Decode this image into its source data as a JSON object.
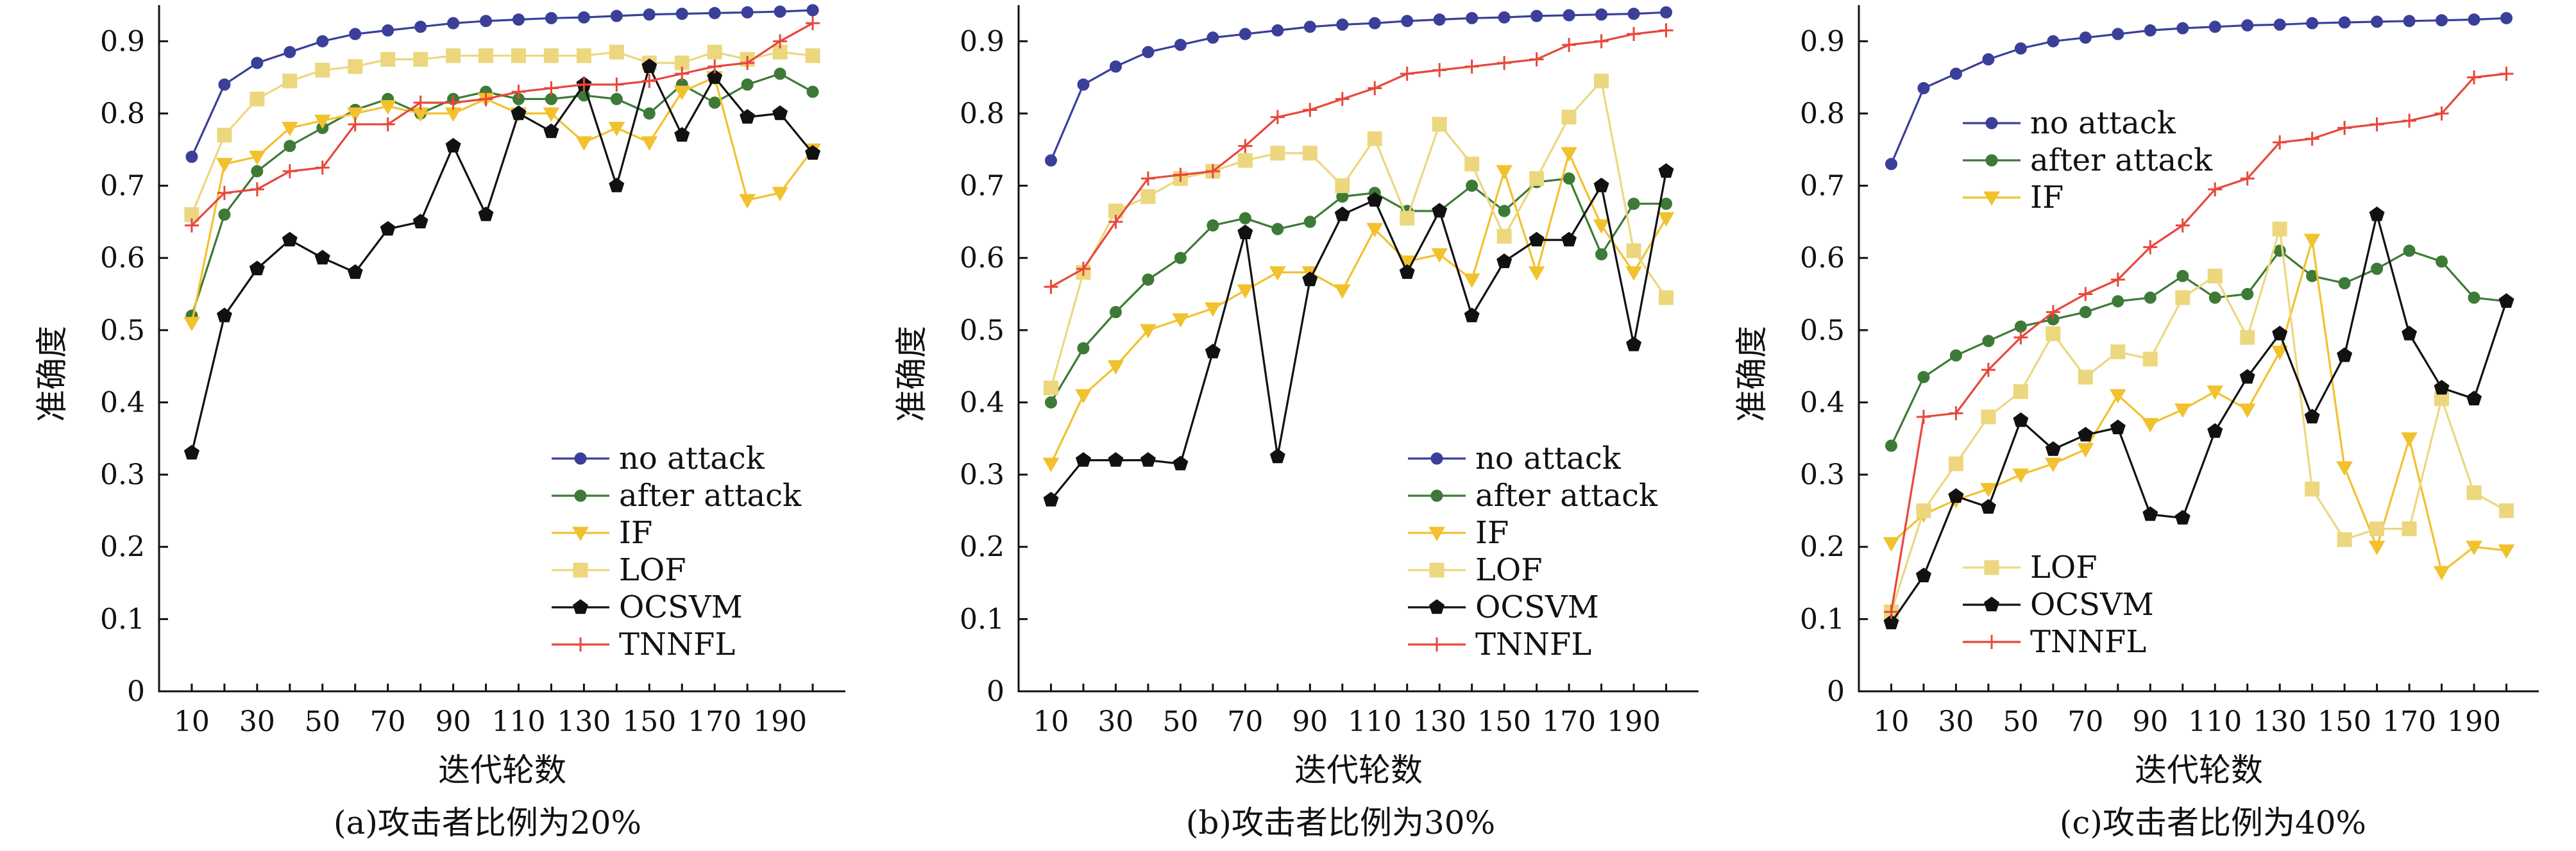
{
  "colors": {
    "no attack": "#3a3f9a",
    "after attack": "#3d7a37",
    "IF": "#f2c12e",
    "LOF": "#ecd77e",
    "OCSVM": "#111111",
    "TNNFL": "#e8473b"
  },
  "markers": {
    "no attack": "circle",
    "after attack": "circle",
    "IF": "triangle-down",
    "LOF": "square",
    "OCSVM": "pentagon",
    "TNNFL": "plus"
  },
  "chart_data": [
    {
      "type": "line",
      "caption": "(a)攻击者比例为20%",
      "xlabel": "迭代轮数",
      "ylabel": "准确度",
      "xlim": [
        0,
        210
      ],
      "ylim": [
        0,
        0.95
      ],
      "xticks": [
        10,
        30,
        50,
        70,
        90,
        110,
        130,
        150,
        170,
        190
      ],
      "yticks": [
        0,
        0.1,
        0.2,
        0.3,
        0.4,
        0.5,
        0.6,
        0.7,
        0.8,
        0.9
      ],
      "ytick_labels": [
        "0",
        "0.1",
        "0.2",
        "0.3",
        "0.4",
        "0.5",
        "0.6",
        "0.7",
        "0.8",
        "0.9"
      ],
      "legend": "lower-right",
      "x": [
        10,
        20,
        30,
        40,
        50,
        60,
        70,
        80,
        90,
        100,
        110,
        120,
        130,
        140,
        150,
        160,
        170,
        180,
        190,
        200
      ],
      "series": [
        {
          "name": "no attack",
          "values": [
            0.74,
            0.84,
            0.87,
            0.885,
            0.9,
            0.91,
            0.915,
            0.92,
            0.925,
            0.928,
            0.93,
            0.932,
            0.933,
            0.935,
            0.937,
            0.938,
            0.939,
            0.94,
            0.941,
            0.943
          ]
        },
        {
          "name": "after attack",
          "values": [
            0.52,
            0.66,
            0.72,
            0.755,
            0.78,
            0.805,
            0.82,
            0.8,
            0.82,
            0.83,
            0.82,
            0.82,
            0.825,
            0.82,
            0.8,
            0.84,
            0.815,
            0.84,
            0.855,
            0.83
          ]
        },
        {
          "name": "IF",
          "values": [
            0.51,
            0.73,
            0.74,
            0.78,
            0.79,
            0.8,
            0.81,
            0.8,
            0.8,
            0.82,
            0.8,
            0.8,
            0.76,
            0.78,
            0.76,
            0.83,
            0.85,
            0.68,
            0.69,
            0.75
          ]
        },
        {
          "name": "LOF",
          "values": [
            0.66,
            0.77,
            0.82,
            0.845,
            0.86,
            0.865,
            0.875,
            0.875,
            0.88,
            0.88,
            0.88,
            0.88,
            0.88,
            0.885,
            0.87,
            0.87,
            0.885,
            0.875,
            0.885,
            0.88
          ]
        },
        {
          "name": "OCSVM",
          "values": [
            0.33,
            0.52,
            0.585,
            0.625,
            0.6,
            0.58,
            0.64,
            0.65,
            0.755,
            0.66,
            0.8,
            0.775,
            0.84,
            0.7,
            0.865,
            0.77,
            0.85,
            0.795,
            0.8,
            0.745
          ]
        },
        {
          "name": "TNNFL",
          "values": [
            0.645,
            0.69,
            0.695,
            0.72,
            0.725,
            0.785,
            0.785,
            0.815,
            0.815,
            0.82,
            0.83,
            0.835,
            0.84,
            0.84,
            0.845,
            0.855,
            0.865,
            0.87,
            0.9,
            0.925
          ]
        }
      ]
    },
    {
      "type": "line",
      "caption": "(b)攻击者比例为30%",
      "xlabel": "迭代轮数",
      "ylabel": "准确度",
      "xlim": [
        0,
        210
      ],
      "ylim": [
        0,
        0.95
      ],
      "xticks": [
        10,
        30,
        50,
        70,
        90,
        110,
        130,
        150,
        170,
        190
      ],
      "yticks": [
        0,
        0.1,
        0.2,
        0.3,
        0.4,
        0.5,
        0.6,
        0.7,
        0.8,
        0.9
      ],
      "ytick_labels": [
        "0",
        "0.1",
        "0.2",
        "0.3",
        "0.4",
        "0.5",
        "0.6",
        "0.7",
        "0.8",
        "0.9"
      ],
      "legend": "lower-right",
      "x": [
        10,
        20,
        30,
        40,
        50,
        60,
        70,
        80,
        90,
        100,
        110,
        120,
        130,
        140,
        150,
        160,
        170,
        180,
        190,
        200
      ],
      "series": [
        {
          "name": "no attack",
          "values": [
            0.735,
            0.84,
            0.865,
            0.885,
            0.895,
            0.905,
            0.91,
            0.915,
            0.92,
            0.923,
            0.925,
            0.928,
            0.93,
            0.932,
            0.933,
            0.935,
            0.936,
            0.937,
            0.938,
            0.94
          ]
        },
        {
          "name": "after attack",
          "values": [
            0.4,
            0.475,
            0.525,
            0.57,
            0.6,
            0.645,
            0.655,
            0.64,
            0.65,
            0.685,
            0.69,
            0.665,
            0.665,
            0.7,
            0.665,
            0.705,
            0.71,
            0.605,
            0.675,
            0.675
          ]
        },
        {
          "name": "IF",
          "values": [
            0.315,
            0.41,
            0.45,
            0.5,
            0.515,
            0.53,
            0.555,
            0.58,
            0.58,
            0.555,
            0.64,
            0.595,
            0.605,
            0.57,
            0.72,
            0.58,
            0.745,
            0.645,
            0.58,
            0.655
          ]
        },
        {
          "name": "LOF",
          "values": [
            0.42,
            0.58,
            0.665,
            0.685,
            0.71,
            0.72,
            0.735,
            0.745,
            0.745,
            0.7,
            0.765,
            0.655,
            0.785,
            0.73,
            0.63,
            0.71,
            0.795,
            0.845,
            0.61,
            0.545
          ]
        },
        {
          "name": "OCSVM",
          "values": [
            0.265,
            0.32,
            0.32,
            0.32,
            0.315,
            0.47,
            0.635,
            0.325,
            0.57,
            0.66,
            0.68,
            0.58,
            0.665,
            0.52,
            0.595,
            0.625,
            0.625,
            0.7,
            0.48,
            0.72
          ]
        },
        {
          "name": "TNNFL",
          "values": [
            0.56,
            0.585,
            0.65,
            0.71,
            0.715,
            0.72,
            0.755,
            0.795,
            0.805,
            0.82,
            0.835,
            0.855,
            0.86,
            0.865,
            0.87,
            0.875,
            0.895,
            0.9,
            0.91,
            0.915
          ]
        }
      ]
    },
    {
      "type": "line",
      "caption": "(c)攻击者比例为40%",
      "xlabel": "迭代轮数",
      "ylabel": "准确度",
      "xlim": [
        0,
        210
      ],
      "ylim": [
        0,
        0.95
      ],
      "xticks": [
        10,
        30,
        50,
        70,
        90,
        110,
        130,
        150,
        170,
        190
      ],
      "yticks": [
        0,
        0.1,
        0.2,
        0.3,
        0.4,
        0.5,
        0.6,
        0.7,
        0.8,
        0.9
      ],
      "ytick_labels": [
        "0",
        "0.1",
        "0.2",
        "0.3",
        "0.4",
        "0.5",
        "0.6",
        "0.7",
        "0.8",
        "0.9"
      ],
      "legend": "split: top-left (no attack, after attack, IF) and bottom-left (LOF, OCSVM, TNNFL)",
      "x": [
        10,
        20,
        30,
        40,
        50,
        60,
        70,
        80,
        90,
        100,
        110,
        120,
        130,
        140,
        150,
        160,
        170,
        180,
        190,
        200
      ],
      "series": [
        {
          "name": "no attack",
          "values": [
            0.73,
            0.835,
            0.855,
            0.875,
            0.89,
            0.9,
            0.905,
            0.91,
            0.915,
            0.918,
            0.92,
            0.922,
            0.923,
            0.925,
            0.926,
            0.927,
            0.928,
            0.929,
            0.93,
            0.932
          ]
        },
        {
          "name": "after attack",
          "values": [
            0.34,
            0.435,
            0.465,
            0.485,
            0.505,
            0.515,
            0.525,
            0.54,
            0.545,
            0.575,
            0.545,
            0.55,
            0.61,
            0.575,
            0.565,
            0.585,
            0.61,
            0.595,
            0.545,
            0.54
          ]
        },
        {
          "name": "IF",
          "values": [
            0.205,
            0.245,
            0.265,
            0.28,
            0.3,
            0.315,
            0.335,
            0.41,
            0.37,
            0.39,
            0.415,
            0.39,
            0.47,
            0.625,
            0.31,
            0.2,
            0.35,
            0.165,
            0.2,
            0.195
          ]
        },
        {
          "name": "LOF",
          "values": [
            0.11,
            0.25,
            0.315,
            0.38,
            0.415,
            0.495,
            0.435,
            0.47,
            0.46,
            0.545,
            0.575,
            0.49,
            0.64,
            0.28,
            0.21,
            0.225,
            0.225,
            0.405,
            0.275,
            0.25
          ]
        },
        {
          "name": "OCSVM",
          "values": [
            0.095,
            0.16,
            0.27,
            0.255,
            0.375,
            0.335,
            0.355,
            0.365,
            0.245,
            0.24,
            0.36,
            0.435,
            0.495,
            0.38,
            0.465,
            0.66,
            0.495,
            0.42,
            0.405,
            0.54
          ]
        },
        {
          "name": "TNNFL",
          "values": [
            0.11,
            0.38,
            0.385,
            0.445,
            0.49,
            0.525,
            0.55,
            0.57,
            0.615,
            0.645,
            0.695,
            0.71,
            0.76,
            0.765,
            0.78,
            0.785,
            0.79,
            0.8,
            0.85,
            0.855
          ]
        }
      ]
    }
  ]
}
